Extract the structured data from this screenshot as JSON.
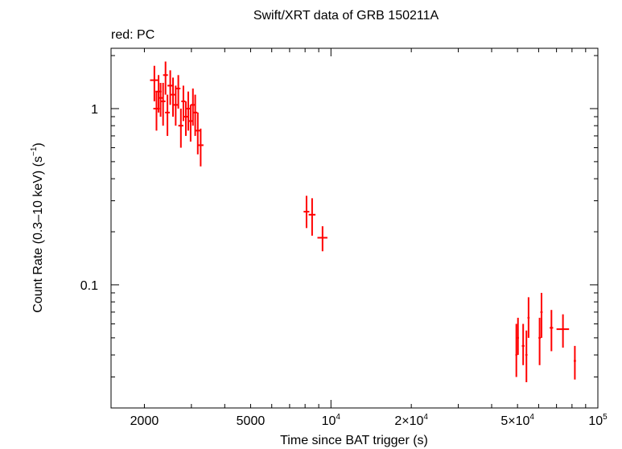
{
  "chart_data": {
    "type": "scatter",
    "title": "Swift/XRT data of GRB 150211A",
    "subtitle": "red: PC",
    "xlabel": "Time since BAT trigger (s)",
    "ylabel_main": "Count Rate (0.3–10 keV) (s",
    "ylabel_sup": "−1",
    "ylabel_end": ")",
    "xscale": "log",
    "yscale": "log",
    "xlim": [
      1500,
      100000
    ],
    "ylim": [
      0.02,
      2.2
    ],
    "grid": false,
    "series_color": "#ff0000",
    "x_ticks": [
      {
        "value": 2000,
        "base": "2000",
        "sup": ""
      },
      {
        "value": 5000,
        "base": "5000",
        "sup": ""
      },
      {
        "value": 10000,
        "base": "10",
        "sup": "4"
      },
      {
        "value": 20000,
        "base": "2×10",
        "sup": "4"
      },
      {
        "value": 50000,
        "base": "5×10",
        "sup": "4"
      },
      {
        "value": 100000,
        "base": "10",
        "sup": "5"
      }
    ],
    "y_ticks": [
      {
        "value": 1,
        "label": "1"
      },
      {
        "value": 0.1,
        "label": "0.1"
      }
    ],
    "series": [
      {
        "points": [
          {
            "x": 2180,
            "xerr": [
              80,
              80
            ],
            "y": 1.45,
            "yerr": [
              0.35,
              0.3
            ]
          },
          {
            "x": 2220,
            "xerr": [
              60,
              60
            ],
            "y": 1.0,
            "yerr": [
              0.25,
              0.25
            ]
          },
          {
            "x": 2260,
            "xerr": [
              60,
              60
            ],
            "y": 1.25,
            "yerr": [
              0.3,
              0.3
            ]
          },
          {
            "x": 2300,
            "xerr": [
              50,
              50
            ],
            "y": 1.15,
            "yerr": [
              0.25,
              0.25
            ]
          },
          {
            "x": 2350,
            "xerr": [
              50,
              50
            ],
            "y": 1.1,
            "yerr": [
              0.3,
              0.3
            ]
          },
          {
            "x": 2400,
            "xerr": [
              50,
              50
            ],
            "y": 1.55,
            "yerr": [
              0.35,
              0.3
            ]
          },
          {
            "x": 2440,
            "xerr": [
              50,
              50
            ],
            "y": 0.95,
            "yerr": [
              0.25,
              0.25
            ]
          },
          {
            "x": 2500,
            "xerr": [
              60,
              60
            ],
            "y": 1.35,
            "yerr": [
              0.3,
              0.3
            ]
          },
          {
            "x": 2560,
            "xerr": [
              60,
              60
            ],
            "y": 1.2,
            "yerr": [
              0.3,
              0.3
            ]
          },
          {
            "x": 2620,
            "xerr": [
              50,
              50
            ],
            "y": 1.05,
            "yerr": [
              0.25,
              0.3
            ]
          },
          {
            "x": 2680,
            "xerr": [
              50,
              50
            ],
            "y": 1.3,
            "yerr": [
              0.3,
              0.25
            ]
          },
          {
            "x": 2740,
            "xerr": [
              60,
              60
            ],
            "y": 0.8,
            "yerr": [
              0.2,
              0.2
            ]
          },
          {
            "x": 2800,
            "xerr": [
              50,
              50
            ],
            "y": 1.1,
            "yerr": [
              0.25,
              0.25
            ]
          },
          {
            "x": 2860,
            "xerr": [
              50,
              50
            ],
            "y": 0.9,
            "yerr": [
              0.2,
              0.2
            ]
          },
          {
            "x": 2920,
            "xerr": [
              50,
              50
            ],
            "y": 1.0,
            "yerr": [
              0.25,
              0.25
            ]
          },
          {
            "x": 2980,
            "xerr": [
              50,
              50
            ],
            "y": 0.85,
            "yerr": [
              0.2,
              0.2
            ]
          },
          {
            "x": 3040,
            "xerr": [
              60,
              60
            ],
            "y": 1.05,
            "yerr": [
              0.25,
              0.25
            ]
          },
          {
            "x": 3100,
            "xerr": [
              60,
              60
            ],
            "y": 0.95,
            "yerr": [
              0.25,
              0.25
            ]
          },
          {
            "x": 3170,
            "xerr": [
              70,
              70
            ],
            "y": 0.75,
            "yerr": [
              0.2,
              0.2
            ]
          },
          {
            "x": 3250,
            "xerr": [
              80,
              80
            ],
            "y": 0.62,
            "yerr": [
              0.15,
              0.15
            ]
          },
          {
            "x": 8100,
            "xerr": [
              200,
              200
            ],
            "y": 0.26,
            "yerr": [
              0.05,
              0.06
            ]
          },
          {
            "x": 8500,
            "xerr": [
              250,
              250
            ],
            "y": 0.25,
            "yerr": [
              0.06,
              0.06
            ]
          },
          {
            "x": 9300,
            "xerr": [
              400,
              400
            ],
            "y": 0.185,
            "yerr": [
              0.03,
              0.03
            ]
          },
          {
            "x": 49500,
            "xerr": [
              400,
              400
            ],
            "y": 0.04,
            "yerr": [
              0.01,
              0.02
            ]
          },
          {
            "x": 50200,
            "xerr": [
              400,
              400
            ],
            "y": 0.05,
            "yerr": [
              0.01,
              0.015
            ]
          },
          {
            "x": 52500,
            "xerr": [
              600,
              600
            ],
            "y": 0.045,
            "yerr": [
              0.01,
              0.015
            ]
          },
          {
            "x": 54000,
            "xerr": [
              500,
              500
            ],
            "y": 0.04,
            "yerr": [
              0.012,
              0.015
            ]
          },
          {
            "x": 55000,
            "xerr": [
              500,
              500
            ],
            "y": 0.065,
            "yerr": [
              0.015,
              0.02
            ]
          },
          {
            "x": 60500,
            "xerr": [
              600,
              600
            ],
            "y": 0.05,
            "yerr": [
              0.015,
              0.015
            ]
          },
          {
            "x": 61500,
            "xerr": [
              600,
              600
            ],
            "y": 0.07,
            "yerr": [
              0.02,
              0.02
            ]
          },
          {
            "x": 67000,
            "xerr": [
              1000,
              1000
            ],
            "y": 0.057,
            "yerr": [
              0.015,
              0.015
            ]
          },
          {
            "x": 74000,
            "xerr": [
              4000,
              4000
            ],
            "y": 0.056,
            "yerr": [
              0.012,
              0.012
            ]
          },
          {
            "x": 82000,
            "xerr": [
              800,
              800
            ],
            "y": 0.037,
            "yerr": [
              0.008,
              0.008
            ]
          }
        ]
      }
    ]
  }
}
